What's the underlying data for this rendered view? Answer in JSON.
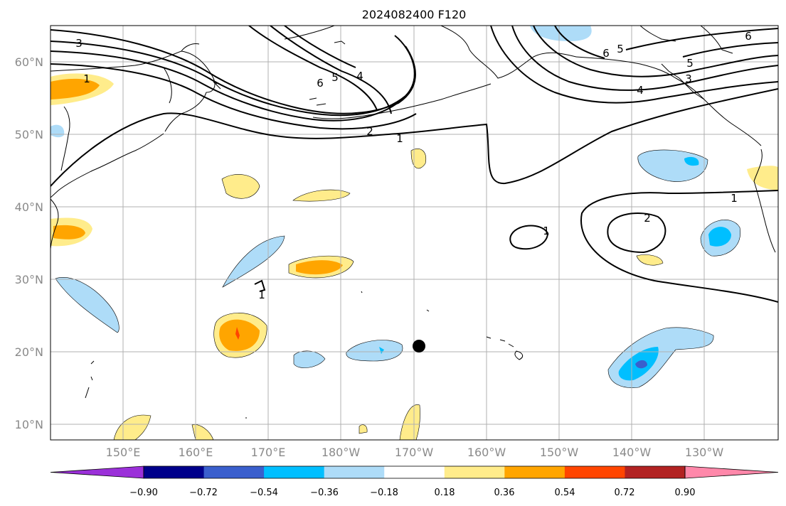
{
  "title": "2024082400 F120",
  "map": {
    "lat_labels": [
      "60°N",
      "50°N",
      "40°N",
      "30°N",
      "20°N",
      "10°N"
    ],
    "lon_labels": [
      "150°E",
      "160°E",
      "170°E",
      "180°W",
      "170°W",
      "160°W",
      "150°W",
      "140°W",
      "130°W"
    ],
    "gridlines": true,
    "marker": {
      "name": "storm-center-marker",
      "lon": -169,
      "lat": 20.8,
      "color": "#000000"
    }
  },
  "contour_labels": [
    "3",
    "1",
    "2",
    "1",
    "6",
    "5",
    "4",
    "5",
    "6",
    "4",
    "3",
    "5",
    "6",
    "1",
    "2",
    "1",
    "1"
  ],
  "colorbar": {
    "ticks": [
      "−0.90",
      "−0.72",
      "−0.54",
      "−0.36",
      "−0.18",
      "0.18",
      "0.36",
      "0.54",
      "0.72",
      "0.90"
    ],
    "colors": [
      "#9b30d9",
      "#00008b",
      "#3a5fcd",
      "#00bfff",
      "#aedcf8",
      "#ffffff",
      "#ffec8b",
      "#ffa500",
      "#ff4500",
      "#b22222",
      "#ff88aa"
    ],
    "extend": "both"
  }
}
